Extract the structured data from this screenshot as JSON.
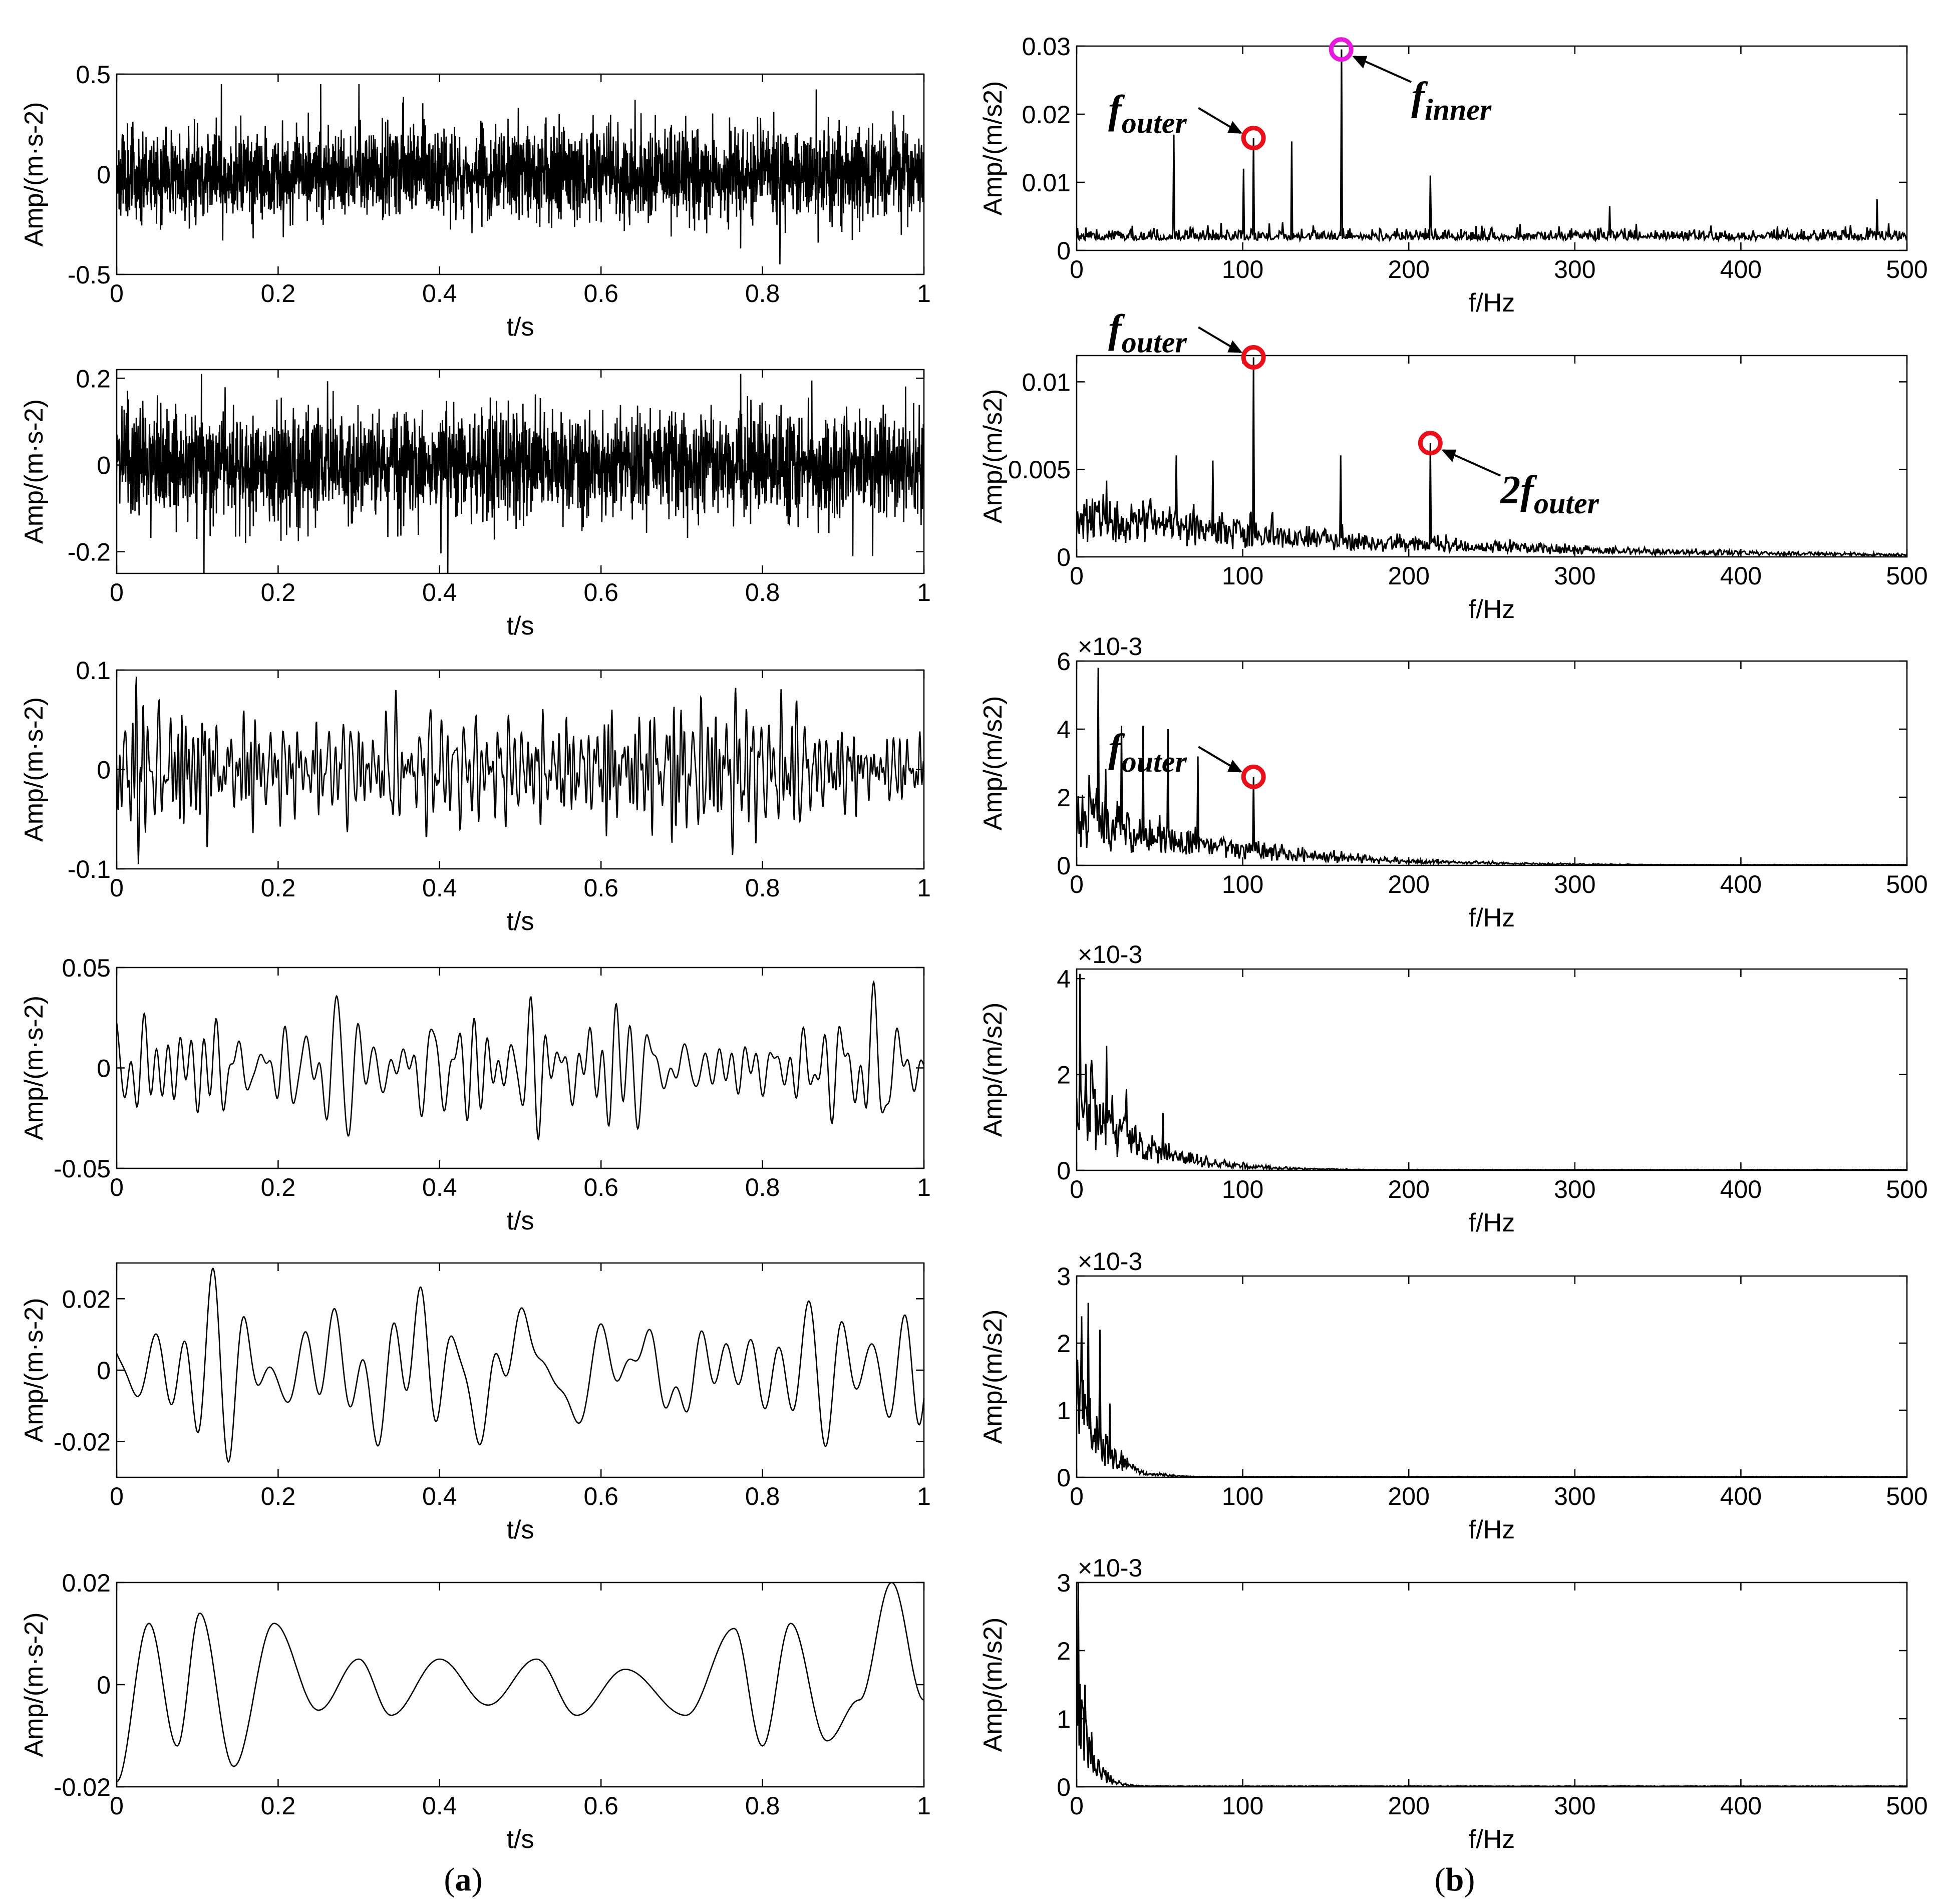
{
  "figure": {
    "captions": [
      "(a)",
      "(b)"
    ],
    "caption_bold": [
      "a",
      "b"
    ]
  },
  "chart_data": [
    {
      "type": "line",
      "panel": "a",
      "row": 1,
      "xlabel": "t/s",
      "ylabel": "Amp/(m·s-2)",
      "xlim": [
        0,
        1
      ],
      "ylim": [
        -0.5,
        0.5
      ],
      "xticks": [
        "0",
        "0.2",
        "0.4",
        "0.6",
        "0.8",
        "1"
      ],
      "yticks": [
        "-0.5",
        "0",
        "0.5"
      ],
      "signal": {
        "kind": "broadband_noise",
        "samples": 3000,
        "std": 0.11,
        "peak": 0.45,
        "seed": 11
      }
    },
    {
      "type": "line",
      "panel": "a",
      "row": 2,
      "xlabel": "t/s",
      "ylabel": "Amp/(m·s-2)",
      "xlim": [
        0,
        1
      ],
      "ylim": [
        -0.25,
        0.22
      ],
      "xticks": [
        "0",
        "0.2",
        "0.4",
        "0.6",
        "0.8",
        "1"
      ],
      "yticks": [
        "-0.2",
        "0",
        "0.2"
      ],
      "signal": {
        "kind": "impulsive_noise",
        "samples": 2600,
        "std": 0.06,
        "peak": 0.21,
        "seed": 22,
        "impulses": [
          {
            "t": 0.108,
            "v": -0.25
          },
          {
            "t": 0.41,
            "v": 0.21
          },
          {
            "t": 0.41,
            "v": -0.25
          }
        ]
      }
    },
    {
      "type": "line",
      "panel": "a",
      "row": 3,
      "xlabel": "t/s",
      "ylabel": "Amp/(m·s-2)",
      "xlim": [
        0,
        1
      ],
      "ylim": [
        -0.1,
        0.1
      ],
      "xticks": [
        "0",
        "0.2",
        "0.4",
        "0.6",
        "0.8",
        "1"
      ],
      "yticks": [
        "-0.1",
        "0",
        "0.1"
      ],
      "signal": {
        "kind": "bandlimited",
        "samples": 1600,
        "freqs": [
          58,
          72,
          91,
          106,
          123,
          140,
          157,
          176,
          198,
          215,
          233,
          251
        ],
        "std": 0.026,
        "peak": 0.1,
        "seed": 33
      }
    },
    {
      "type": "line",
      "panel": "a",
      "row": 4,
      "xlabel": "t/s",
      "ylabel": "Amp/(m·s-2)",
      "xlim": [
        0,
        1
      ],
      "ylim": [
        -0.05,
        0.05
      ],
      "xticks": [
        "0",
        "0.2",
        "0.4",
        "0.6",
        "0.8",
        "1"
      ],
      "yticks": [
        "-0.05",
        "0",
        "0.05"
      ],
      "signal": {
        "kind": "bandlimited",
        "samples": 1400,
        "freqs": [
          26,
          33,
          41,
          48,
          55,
          62,
          70
        ],
        "std": 0.012,
        "peak": 0.045,
        "seed": 44
      }
    },
    {
      "type": "line",
      "panel": "a",
      "row": 5,
      "xlabel": "t/s",
      "ylabel": "Amp/(m·s-2)",
      "xlim": [
        0,
        1
      ],
      "ylim": [
        -0.03,
        0.03
      ],
      "xticks": [
        "0",
        "0.2",
        "0.4",
        "0.6",
        "0.8",
        "1"
      ],
      "yticks": [
        "-0.02",
        "0",
        "0.02"
      ],
      "signal": {
        "kind": "bandlimited",
        "samples": 1200,
        "freqs": [
          8,
          12,
          16,
          19,
          23,
          27,
          31
        ],
        "std": 0.008,
        "peak": 0.03,
        "seed": 55
      }
    },
    {
      "type": "line",
      "panel": "a",
      "row": 6,
      "xlabel": "t/s",
      "ylabel": "Amp/(m·s-2)",
      "xlim": [
        0,
        1
      ],
      "ylim": [
        -0.02,
        0.02
      ],
      "xticks": [
        "0",
        "0.2",
        "0.4",
        "0.6",
        "0.8",
        "1"
      ],
      "yticks": [
        "-0.02",
        "0",
        "0.02"
      ],
      "signal": {
        "kind": "anchors",
        "points": [
          [
            0,
            -0.019
          ],
          [
            0.04,
            0.012
          ],
          [
            0.075,
            -0.012
          ],
          [
            0.103,
            0.014
          ],
          [
            0.145,
            -0.016
          ],
          [
            0.195,
            0.012
          ],
          [
            0.25,
            -0.005
          ],
          [
            0.3,
            0.005
          ],
          [
            0.34,
            -0.006
          ],
          [
            0.4,
            0.005
          ],
          [
            0.46,
            -0.004
          ],
          [
            0.52,
            0.005
          ],
          [
            0.57,
            -0.006
          ],
          [
            0.63,
            0.003
          ],
          [
            0.705,
            -0.006
          ],
          [
            0.765,
            0.011
          ],
          [
            0.8,
            -0.012
          ],
          [
            0.835,
            0.012
          ],
          [
            0.88,
            -0.011
          ],
          [
            0.92,
            -0.003
          ],
          [
            0.96,
            0.02
          ],
          [
            1.0,
            -0.003
          ]
        ]
      }
    },
    {
      "type": "line",
      "panel": "b",
      "row": 1,
      "xlabel": "f/Hz",
      "ylabel": "Amp/(m/s2)",
      "xlim": [
        0,
        500
      ],
      "ylim": [
        0,
        0.03
      ],
      "xticks": [
        "0",
        "100",
        "200",
        "300",
        "400",
        "500"
      ],
      "yticks": [
        "0",
        "0.01",
        "0.02",
        "0.03"
      ],
      "spectrum": {
        "floor": 0.0025,
        "floor_decay": 0,
        "jitter": 0.0015,
        "seed": 61,
        "peaks": [
          [
            58.6,
            0.017
          ],
          [
            100.5,
            0.012
          ],
          [
            106.5,
            0.0165
          ],
          [
            129.3,
            0.016
          ],
          [
            159.3,
            0.0295
          ],
          [
            213,
            0.011
          ],
          [
            321,
            0.0065
          ],
          [
            482,
            0.0075
          ]
        ]
      },
      "annotations": [
        {
          "text": "f",
          "sub": "outer",
          "marker_f": 106.5,
          "marker_v": 0.0165,
          "marker_color": "#e8101a"
        },
        {
          "text": "f",
          "sub": "inner",
          "marker_f": 159.3,
          "marker_v": 0.0295,
          "marker_color": "#e61adc"
        }
      ]
    },
    {
      "type": "line",
      "panel": "b",
      "row": 2,
      "xlabel": "f/Hz",
      "ylabel": "Amp/(m/s2)",
      "xlim": [
        0,
        500
      ],
      "ylim": [
        0,
        0.0115
      ],
      "xticks": [
        "0",
        "100",
        "200",
        "300",
        "400",
        "500"
      ],
      "yticks": [
        "0",
        "0.005",
        "0.01"
      ],
      "spectrum": {
        "floor": 0.0028,
        "floor_decay": 0.006,
        "jitter": 0.0016,
        "seed": 62,
        "peaks": [
          [
            106.5,
            0.0114
          ],
          [
            159,
            0.0058
          ],
          [
            213,
            0.0065
          ],
          [
            82,
            0.0055
          ],
          [
            60,
            0.0058
          ]
        ]
      },
      "annotations": [
        {
          "text": "f",
          "sub": "outer",
          "marker_f": 106.5,
          "marker_v": 0.0114,
          "marker_color": "#e8101a"
        },
        {
          "text": "2f",
          "sub": "outer",
          "marker_f": 213,
          "marker_v": 0.0065,
          "marker_color": "#e8101a"
        }
      ]
    },
    {
      "type": "line",
      "panel": "b",
      "row": 3,
      "xlabel": "f/Hz",
      "ylabel": "Amp/(m/s2)",
      "xlim": [
        0,
        500
      ],
      "ylim": [
        0,
        0.006
      ],
      "exponent": "×10-3",
      "xticks": [
        "0",
        "100",
        "200",
        "300",
        "400",
        "500"
      ],
      "yticks": [
        "0",
        "2",
        "4",
        "6"
      ],
      "spectrum": {
        "floor": 0.0018,
        "floor_decay": 0.013,
        "jitter": 0.0012,
        "seed": 63,
        "peaks": [
          [
            13,
            0.0058
          ],
          [
            27,
            0.0041
          ],
          [
            40,
            0.0041
          ],
          [
            55,
            0.004
          ],
          [
            73,
            0.0032
          ],
          [
            106.5,
            0.0026
          ]
        ]
      },
      "annotations": [
        {
          "text": "f",
          "sub": "outer",
          "marker_f": 106.5,
          "marker_v": 0.0026,
          "marker_color": "#e8101a"
        }
      ]
    },
    {
      "type": "line",
      "panel": "b",
      "row": 4,
      "xlabel": "f/Hz",
      "ylabel": "Amp/(m/s2)",
      "xlim": [
        0,
        500
      ],
      "ylim": [
        0,
        0.0042
      ],
      "exponent": "×10-3",
      "xticks": [
        "0",
        "100",
        "200",
        "300",
        "400",
        "500"
      ],
      "yticks": [
        "0",
        "2",
        "4"
      ],
      "spectrum": {
        "floor": 0.0018,
        "floor_decay": 0.028,
        "jitter": 0.001,
        "seed": 64,
        "peaks": [
          [
            2,
            0.0041
          ],
          [
            9,
            0.0023
          ],
          [
            18,
            0.0026
          ],
          [
            30,
            0.0017
          ],
          [
            52,
            0.0012
          ]
        ]
      }
    },
    {
      "type": "line",
      "panel": "b",
      "row": 5,
      "xlabel": "f/Hz",
      "ylabel": "Amp/(m/s2)",
      "xlim": [
        0,
        500
      ],
      "ylim": [
        0,
        0.003
      ],
      "exponent": "×10-3",
      "xticks": [
        "0",
        "100",
        "200",
        "300",
        "400",
        "500"
      ],
      "yticks": [
        "0",
        "1",
        "2",
        "3"
      ],
      "spectrum": {
        "floor": 0.0016,
        "floor_decay": 0.07,
        "jitter": 0.0008,
        "seed": 65,
        "peaks": [
          [
            3,
            0.0024
          ],
          [
            7,
            0.0026
          ],
          [
            14,
            0.0022
          ],
          [
            20,
            0.0011
          ]
        ]
      }
    },
    {
      "type": "line",
      "panel": "b",
      "row": 6,
      "xlabel": "f/Hz",
      "ylabel": "Amp/(m/s2)",
      "xlim": [
        0,
        500
      ],
      "ylim": [
        0,
        0.003
      ],
      "exponent": "×10-3",
      "xticks": [
        "0",
        "100",
        "200",
        "300",
        "400",
        "500"
      ],
      "yticks": [
        "0",
        "1",
        "2",
        "3"
      ],
      "spectrum": {
        "floor": 0.0016,
        "floor_decay": 0.12,
        "jitter": 0.0006,
        "seed": 66,
        "peaks": [
          [
            1,
            0.003
          ],
          [
            5,
            0.0015
          ],
          [
            9,
            0.0008
          ]
        ]
      }
    }
  ]
}
